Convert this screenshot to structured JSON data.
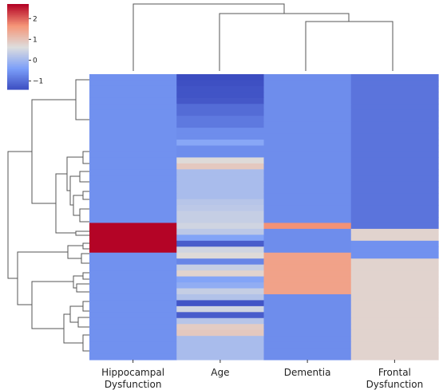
{
  "chart_data": {
    "type": "heatmap",
    "title": "",
    "columns": [
      {
        "label_lines": [
          "Hippocampal",
          "Dysfunction"
        ]
      },
      {
        "label_lines": [
          "Age"
        ]
      },
      {
        "label_lines": [
          "Dementia"
        ]
      },
      {
        "label_lines": [
          "Frontal",
          "Dysfunction"
        ]
      }
    ],
    "color_map": "coolwarm",
    "vmin": -1.4,
    "vmax": 2.7,
    "colorbar_ticks": [
      {
        "value": 2,
        "label": "2"
      },
      {
        "value": 1,
        "label": "1"
      },
      {
        "value": 0,
        "label": "0"
      },
      {
        "value": -1,
        "label": "−1"
      }
    ],
    "row_count": 48,
    "values": [
      [
        -0.55,
        -1.4,
        -0.6,
        -0.9
      ],
      [
        -0.55,
        -1.35,
        -0.6,
        -0.9
      ],
      [
        -0.55,
        -1.3,
        -0.6,
        -0.9
      ],
      [
        -0.55,
        -1.3,
        -0.6,
        -0.9
      ],
      [
        -0.55,
        -1.25,
        -0.6,
        -0.9
      ],
      [
        -0.55,
        -1.0,
        -0.6,
        -0.9
      ],
      [
        -0.55,
        -1.0,
        -0.6,
        -0.9
      ],
      [
        -0.55,
        -0.85,
        -0.6,
        -0.9
      ],
      [
        -0.55,
        -0.85,
        -0.6,
        -0.9
      ],
      [
        -0.55,
        -0.6,
        -0.6,
        -0.9
      ],
      [
        -0.55,
        -0.6,
        -0.6,
        -0.9
      ],
      [
        -0.55,
        -0.25,
        -0.6,
        -0.9
      ],
      [
        -0.55,
        -0.6,
        -0.6,
        -0.9
      ],
      [
        -0.55,
        -0.6,
        -0.6,
        -0.9
      ],
      [
        -0.55,
        0.7,
        -0.6,
        -0.9
      ],
      [
        -0.55,
        0.95,
        -0.6,
        -0.9
      ],
      [
        -0.55,
        0.1,
        -0.6,
        -0.9
      ],
      [
        -0.55,
        0.1,
        -0.6,
        -0.9
      ],
      [
        -0.55,
        0.1,
        -0.6,
        -0.9
      ],
      [
        -0.55,
        0.1,
        -0.6,
        -0.9
      ],
      [
        -0.55,
        0.1,
        -0.6,
        -0.9
      ],
      [
        -0.55,
        0.25,
        -0.6,
        -0.9
      ],
      [
        -0.55,
        0.3,
        -0.6,
        -0.9
      ],
      [
        -0.55,
        0.4,
        -0.6,
        -0.9
      ],
      [
        -0.55,
        0.4,
        -0.6,
        -0.9
      ],
      [
        2.7,
        0.5,
        1.7,
        -0.9
      ],
      [
        2.7,
        0.3,
        -0.6,
        0.8
      ],
      [
        2.7,
        -0.3,
        -0.6,
        0.8
      ],
      [
        2.7,
        -1.2,
        -0.6,
        -0.55
      ],
      [
        2.7,
        0.5,
        -0.6,
        -0.55
      ],
      [
        -0.55,
        0.7,
        1.5,
        -0.55
      ],
      [
        -0.55,
        -0.7,
        1.5,
        0.8
      ],
      [
        -0.55,
        0.4,
        1.5,
        0.8
      ],
      [
        -0.55,
        0.8,
        1.5,
        0.8
      ],
      [
        -0.55,
        -0.3,
        1.5,
        0.8
      ],
      [
        -0.55,
        -0.15,
        1.5,
        0.8
      ],
      [
        -0.55,
        0.4,
        1.5,
        0.8
      ],
      [
        -0.55,
        0.2,
        -0.6,
        0.8
      ],
      [
        -0.55,
        -1.3,
        -0.6,
        0.8
      ],
      [
        -0.55,
        0.5,
        -0.6,
        0.8
      ],
      [
        -0.55,
        -1.2,
        -0.6,
        0.8
      ],
      [
        -0.55,
        0.25,
        -0.6,
        0.8
      ],
      [
        -0.55,
        0.9,
        -0.6,
        0.8
      ],
      [
        -0.55,
        0.95,
        -0.6,
        0.8
      ],
      [
        -0.55,
        0.1,
        -0.6,
        0.8
      ],
      [
        -0.55,
        0.1,
        -0.6,
        0.8
      ],
      [
        -0.55,
        0.1,
        -0.6,
        0.8
      ],
      [
        -0.55,
        0.1,
        -0.6,
        0.8
      ]
    ],
    "grid": false,
    "row_dendrogram": true,
    "column_dendrogram": true
  }
}
